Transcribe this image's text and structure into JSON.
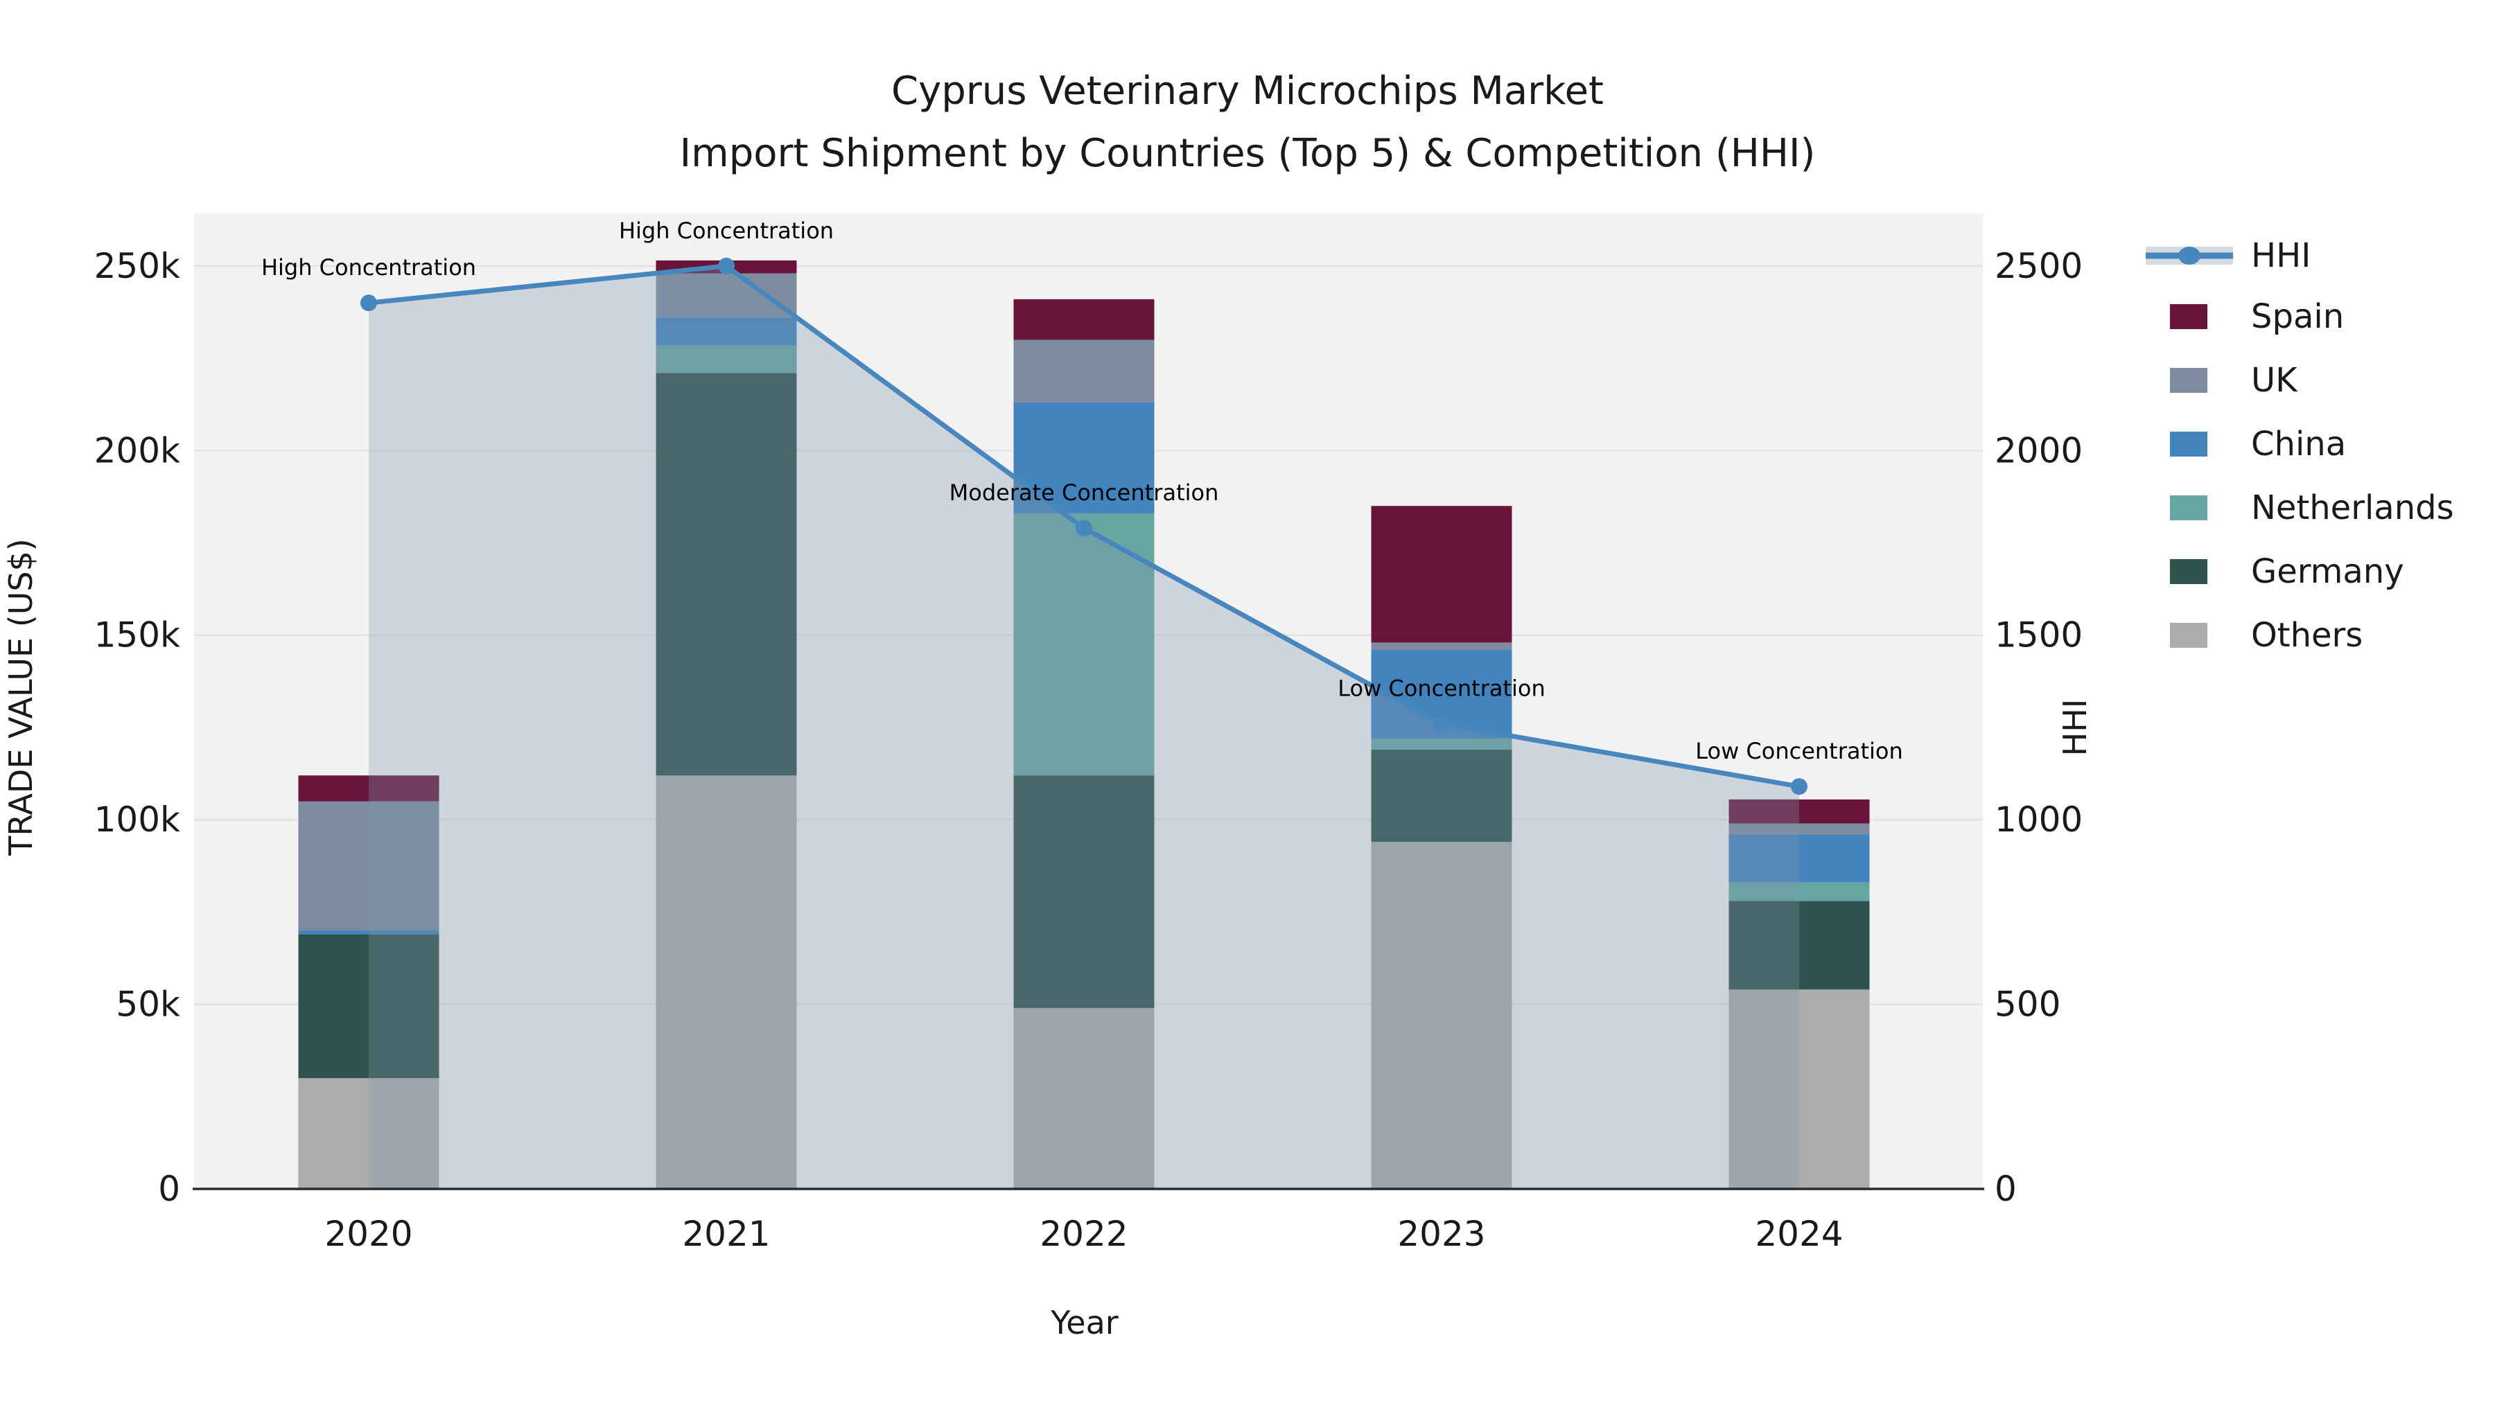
{
  "title": {
    "line1": "Cyprus Veterinary Microchips Market",
    "line2": "Import Shipment by Countries (Top 5) & Competition (HHI)"
  },
  "axes": {
    "x": {
      "title": "Year",
      "ticks": [
        "2020",
        "2021",
        "2022",
        "2023",
        "2024"
      ]
    },
    "y_left": {
      "title": "TRADE VALUE (US$)",
      "ticks": [
        "0",
        "50k",
        "100k",
        "150k",
        "200k",
        "250k"
      ],
      "tick_values_k": [
        0,
        50,
        100,
        150,
        200,
        250
      ]
    },
    "y_right": {
      "title": "HHI",
      "ticks": [
        "0",
        "500",
        "1000",
        "1500",
        "2000",
        "2500"
      ],
      "tick_values": [
        0,
        500,
        1000,
        1500,
        2000,
        2500
      ]
    }
  },
  "legend": {
    "position": "right",
    "order": [
      "HHI",
      "Spain",
      "UK",
      "China",
      "Netherlands",
      "Germany",
      "Others"
    ]
  },
  "colors": {
    "plot_background": "#F2F2F2",
    "gridline": "#E3E3E3",
    "axis_spine": "#2B2B2B",
    "hhi_line": "#4886BE",
    "hhi_area_fill": "#8096AC",
    "legend_band": "#D6DBE1",
    "text": "#1A1A1A"
  },
  "chart_data": {
    "type": "bar",
    "subtype": "stacked-bars-with-line-and-area",
    "units": "US$ thousands (left axis), HHI index (right axis)",
    "categories": [
      "2020",
      "2021",
      "2022",
      "2023",
      "2024"
    ],
    "xlabel": "Year",
    "ylabel_left": "TRADE VALUE (US$)",
    "ylabel_right": "HHI",
    "ylim_left_k": [
      0,
      266
    ],
    "ylim_right": [
      0,
      2660
    ],
    "grid": true,
    "legend_position": "right",
    "stack_order_bottom_to_top": [
      "Others",
      "Germany",
      "Netherlands",
      "China",
      "UK",
      "Spain"
    ],
    "series": [
      {
        "name": "Others",
        "color": "#ACACAC",
        "values": [
          30,
          112,
          49,
          94,
          54
        ]
      },
      {
        "name": "Germany",
        "color": "#2F534F",
        "values": [
          39,
          109,
          63,
          25,
          24
        ]
      },
      {
        "name": "Netherlands",
        "color": "#67A6A3",
        "values": [
          0,
          7.5,
          71,
          3,
          5
        ]
      },
      {
        "name": "China",
        "color": "#4384BE",
        "values": [
          1,
          7.5,
          30,
          24,
          13
        ]
      },
      {
        "name": "UK",
        "color": "#7D8CA0",
        "values": [
          35,
          12,
          17,
          2,
          3
        ]
      },
      {
        "name": "Spain",
        "color": "#69143A",
        "values": [
          7,
          3.5,
          11,
          37,
          6.5
        ]
      }
    ],
    "bar_totals_k": [
      112,
      251.5,
      241,
      185,
      105.5
    ],
    "hhi": {
      "name": "HHI",
      "color": "#4886BE",
      "values": [
        2400,
        2500,
        1790,
        1260,
        1090
      ],
      "area_fill": "#8096AC",
      "area_opacity": 0.32
    },
    "annotations": [
      {
        "category": "2020",
        "text": "High Concentration"
      },
      {
        "category": "2021",
        "text": "High Concentration"
      },
      {
        "category": "2022",
        "text": "Moderate Concentration"
      },
      {
        "category": "2023",
        "text": "Low Concentration"
      },
      {
        "category": "2024",
        "text": "Low Concentration"
      }
    ]
  }
}
